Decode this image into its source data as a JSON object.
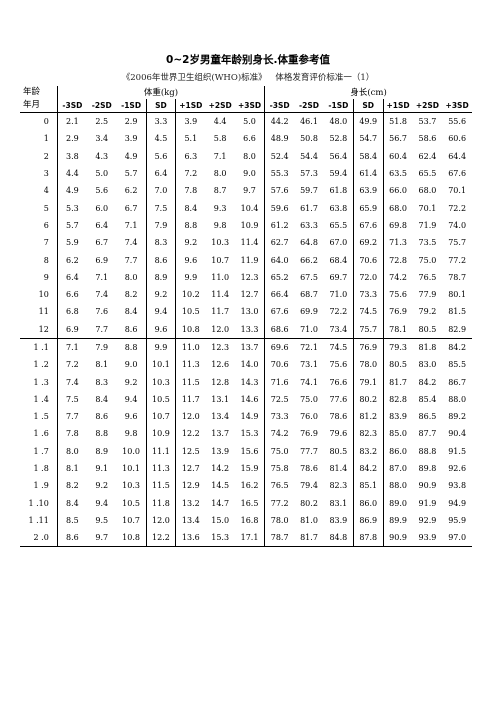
{
  "title": "0~2岁男童年龄别身长.体重参考值",
  "subtitle": "《2006年世界卫生组织(WHO)标准》  体格发育评价标准一（1）",
  "header": {
    "age_line1": "年龄",
    "age_line2": "年月",
    "weight_group": "体重(kg)",
    "length_group": "身长(cm)",
    "sd_labels": [
      "-3SD",
      "-2SD",
      "-1SD",
      "SD",
      "+1SD",
      "+2SD",
      "+3SD"
    ]
  },
  "rows": [
    {
      "age": "0",
      "w": [
        "2.1",
        "2.5",
        "2.9",
        "3.3",
        "3.9",
        "4.4",
        "5.0"
      ],
      "l": [
        "44.2",
        "46.1",
        "48.0",
        "49.9",
        "51.8",
        "53.7",
        "55.6"
      ]
    },
    {
      "age": "1",
      "w": [
        "2.9",
        "3.4",
        "3.9",
        "4.5",
        "5.1",
        "5.8",
        "6.6"
      ],
      "l": [
        "48.9",
        "50.8",
        "52.8",
        "54.7",
        "56.7",
        "58.6",
        "60.6"
      ]
    },
    {
      "age": "2",
      "w": [
        "3.8",
        "4.3",
        "4.9",
        "5.6",
        "6.3",
        "7.1",
        "8.0"
      ],
      "l": [
        "52.4",
        "54.4",
        "56.4",
        "58.4",
        "60.4",
        "62.4",
        "64.4"
      ]
    },
    {
      "age": "3",
      "w": [
        "4.4",
        "5.0",
        "5.7",
        "6.4",
        "7.2",
        "8.0",
        "9.0"
      ],
      "l": [
        "55.3",
        "57.3",
        "59.4",
        "61.4",
        "63.5",
        "65.5",
        "67.6"
      ]
    },
    {
      "age": "4",
      "w": [
        "4.9",
        "5.6",
        "6.2",
        "7.0",
        "7.8",
        "8.7",
        "9.7"
      ],
      "l": [
        "57.6",
        "59.7",
        "61.8",
        "63.9",
        "66.0",
        "68.0",
        "70.1"
      ]
    },
    {
      "age": "5",
      "w": [
        "5.3",
        "6.0",
        "6.7",
        "7.5",
        "8.4",
        "9.3",
        "10.4"
      ],
      "l": [
        "59.6",
        "61.7",
        "63.8",
        "65.9",
        "68.0",
        "70.1",
        "72.2"
      ]
    },
    {
      "age": "6",
      "w": [
        "5.7",
        "6.4",
        "7.1",
        "7.9",
        "8.8",
        "9.8",
        "10.9"
      ],
      "l": [
        "61.2",
        "63.3",
        "65.5",
        "67.6",
        "69.8",
        "71.9",
        "74.0"
      ]
    },
    {
      "age": "7",
      "w": [
        "5.9",
        "6.7",
        "7.4",
        "8.3",
        "9.2",
        "10.3",
        "11.4"
      ],
      "l": [
        "62.7",
        "64.8",
        "67.0",
        "69.2",
        "71.3",
        "73.5",
        "75.7"
      ]
    },
    {
      "age": "8",
      "w": [
        "6.2",
        "6.9",
        "7.7",
        "8.6",
        "9.6",
        "10.7",
        "11.9"
      ],
      "l": [
        "64.0",
        "66.2",
        "68.4",
        "70.6",
        "72.8",
        "75.0",
        "77.2"
      ]
    },
    {
      "age": "9",
      "w": [
        "6.4",
        "7.1",
        "8.0",
        "8.9",
        "9.9",
        "11.0",
        "12.3"
      ],
      "l": [
        "65.2",
        "67.5",
        "69.7",
        "72.0",
        "74.2",
        "76.5",
        "78.7"
      ]
    },
    {
      "age": "10",
      "w": [
        "6.6",
        "7.4",
        "8.2",
        "9.2",
        "10.2",
        "11.4",
        "12.7"
      ],
      "l": [
        "66.4",
        "68.7",
        "71.0",
        "73.3",
        "75.6",
        "77.9",
        "80.1"
      ]
    },
    {
      "age": "11",
      "w": [
        "6.8",
        "7.6",
        "8.4",
        "9.4",
        "10.5",
        "11.7",
        "13.0"
      ],
      "l": [
        "67.6",
        "69.9",
        "72.2",
        "74.5",
        "76.9",
        "79.2",
        "81.5"
      ]
    },
    {
      "age": "12",
      "w": [
        "6.9",
        "7.7",
        "8.6",
        "9.6",
        "10.8",
        "12.0",
        "13.3"
      ],
      "l": [
        "68.6",
        "71.0",
        "73.4",
        "75.7",
        "78.1",
        "80.5",
        "82.9"
      ]
    },
    {
      "age": "1 .1",
      "w": [
        "7.1",
        "7.9",
        "8.8",
        "9.9",
        "11.0",
        "12.3",
        "13.7"
      ],
      "l": [
        "69.6",
        "72.1",
        "74.5",
        "76.9",
        "79.3",
        "81.8",
        "84.2"
      ]
    },
    {
      "age": "1 .2",
      "w": [
        "7.2",
        "8.1",
        "9.0",
        "10.1",
        "11.3",
        "12.6",
        "14.0"
      ],
      "l": [
        "70.6",
        "73.1",
        "75.6",
        "78.0",
        "80.5",
        "83.0",
        "85.5"
      ]
    },
    {
      "age": "1 .3",
      "w": [
        "7.4",
        "8.3",
        "9.2",
        "10.3",
        "11.5",
        "12.8",
        "14.3"
      ],
      "l": [
        "71.6",
        "74.1",
        "76.6",
        "79.1",
        "81.7",
        "84.2",
        "86.7"
      ]
    },
    {
      "age": "1 .4",
      "w": [
        "7.5",
        "8.4",
        "9.4",
        "10.5",
        "11.7",
        "13.1",
        "14.6"
      ],
      "l": [
        "72.5",
        "75.0",
        "77.6",
        "80.2",
        "82.8",
        "85.4",
        "88.0"
      ]
    },
    {
      "age": "1 .5",
      "w": [
        "7.7",
        "8.6",
        "9.6",
        "10.7",
        "12.0",
        "13.4",
        "14.9"
      ],
      "l": [
        "73.3",
        "76.0",
        "78.6",
        "81.2",
        "83.9",
        "86.5",
        "89.2"
      ]
    },
    {
      "age": "1 .6",
      "w": [
        "7.8",
        "8.8",
        "9.8",
        "10.9",
        "12.2",
        "13.7",
        "15.3"
      ],
      "l": [
        "74.2",
        "76.9",
        "79.6",
        "82.3",
        "85.0",
        "87.7",
        "90.4"
      ]
    },
    {
      "age": "1 .7",
      "w": [
        "8.0",
        "8.9",
        "10.0",
        "11.1",
        "12.5",
        "13.9",
        "15.6"
      ],
      "l": [
        "75.0",
        "77.7",
        "80.5",
        "83.2",
        "86.0",
        "88.8",
        "91.5"
      ]
    },
    {
      "age": "1 .8",
      "w": [
        "8.1",
        "9.1",
        "10.1",
        "11.3",
        "12.7",
        "14.2",
        "15.9"
      ],
      "l": [
        "75.8",
        "78.6",
        "81.4",
        "84.2",
        "87.0",
        "89.8",
        "92.6"
      ]
    },
    {
      "age": "1 .9",
      "w": [
        "8.2",
        "9.2",
        "10.3",
        "11.5",
        "12.9",
        "14.5",
        "16.2"
      ],
      "l": [
        "76.5",
        "79.4",
        "82.3",
        "85.1",
        "88.0",
        "90.9",
        "93.8"
      ]
    },
    {
      "age": "1 .10",
      "w": [
        "8.4",
        "9.4",
        "10.5",
        "11.8",
        "13.2",
        "14.7",
        "16.5"
      ],
      "l": [
        "77.2",
        "80.2",
        "83.1",
        "86.0",
        "89.0",
        "91.9",
        "94.9"
      ]
    },
    {
      "age": "1 .11",
      "w": [
        "8.5",
        "9.5",
        "10.7",
        "12.0",
        "13.4",
        "15.0",
        "16.8"
      ],
      "l": [
        "78.0",
        "81.0",
        "83.9",
        "86.9",
        "89.9",
        "92.9",
        "95.9"
      ]
    },
    {
      "age": "2 .0",
      "w": [
        "8.6",
        "9.7",
        "10.8",
        "12.2",
        "13.6",
        "15.3",
        "17.1"
      ],
      "l": [
        "78.7",
        "81.7",
        "84.8",
        "87.8",
        "90.9",
        "93.9",
        "97.0"
      ]
    }
  ]
}
